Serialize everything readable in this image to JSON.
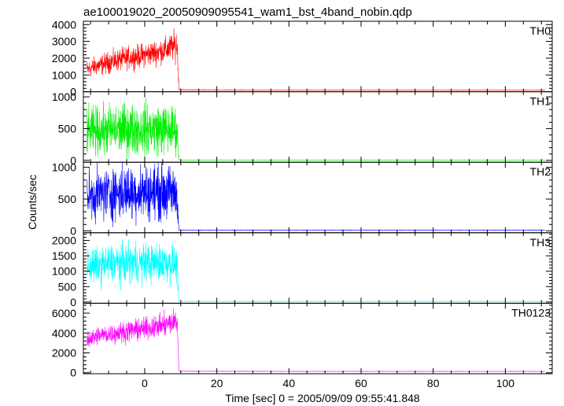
{
  "chart_data": {
    "type": "line",
    "title": "ae100019020_20050909095541_wam1_bst_4band_nobin.qdp",
    "xlabel": "Time [sec] 0 = 2005/09/09 09:55:41.848",
    "ylabel": "Counts/sec",
    "xlim": [
      -17,
      113
    ],
    "x_ticks": [
      0,
      20,
      40,
      60,
      80,
      100
    ],
    "grid": false,
    "panels": [
      {
        "name": "TH0",
        "color": "#ff0000",
        "ylim": [
          0,
          4200
        ],
        "y_ticks": [
          0,
          1000,
          2000,
          3000,
          4000
        ],
        "series": {
          "x": [
            -16,
            -14,
            -12,
            -10,
            -8,
            -6,
            -4,
            -2,
            0,
            2,
            4,
            6,
            8,
            9,
            9.5,
            10,
            20,
            40,
            60,
            80,
            100,
            111
          ],
          "y": [
            1300,
            1500,
            1600,
            1750,
            1850,
            1950,
            2050,
            2100,
            2200,
            2300,
            2400,
            2500,
            2700,
            2800,
            150,
            120,
            110,
            100,
            100,
            100,
            100,
            100
          ],
          "noise": [
            700,
            700,
            750,
            800,
            800,
            850,
            850,
            850,
            900,
            900,
            950,
            950,
            1100,
            1200,
            40,
            20,
            15,
            10,
            10,
            10,
            10,
            10
          ]
        }
      },
      {
        "name": "TH1",
        "color": "#00ee00",
        "ylim": [
          -30,
          1080
        ],
        "y_ticks": [
          0,
          500,
          1000
        ],
        "series": {
          "x": [
            -16,
            -12,
            -8,
            -4,
            0,
            4,
            8,
            9,
            9.5,
            10,
            40,
            80,
            111
          ],
          "y": [
            450,
            470,
            480,
            490,
            500,
            490,
            480,
            470,
            10,
            5,
            5,
            5,
            5
          ],
          "noise": [
            450,
            480,
            500,
            500,
            500,
            500,
            480,
            450,
            5,
            3,
            3,
            3,
            3
          ]
        }
      },
      {
        "name": "TH2",
        "color": "#0000ff",
        "ylim": [
          -30,
          1080
        ],
        "y_ticks": [
          0,
          500,
          1000
        ],
        "series": {
          "x": [
            -16,
            -12,
            -8,
            -4,
            0,
            4,
            8,
            9,
            9.5,
            10,
            40,
            80,
            111
          ],
          "y": [
            560,
            580,
            600,
            610,
            620,
            610,
            600,
            580,
            15,
            10,
            10,
            10,
            10
          ],
          "noise": [
            480,
            520,
            540,
            540,
            540,
            540,
            520,
            500,
            6,
            4,
            4,
            4,
            4
          ]
        }
      },
      {
        "name": "TH3",
        "color": "#00ffff",
        "ylim": [
          -40,
          2250
        ],
        "y_ticks": [
          0,
          500,
          1000,
          1500,
          2000
        ],
        "series": {
          "x": [
            -16,
            -12,
            -8,
            -4,
            0,
            4,
            8,
            9,
            9.5,
            10,
            40,
            80,
            111
          ],
          "y": [
            1150,
            1200,
            1250,
            1270,
            1280,
            1270,
            1250,
            1200,
            25,
            20,
            20,
            20,
            20
          ],
          "noise": [
            700,
            750,
            800,
            800,
            800,
            800,
            760,
            700,
            8,
            5,
            5,
            5,
            5
          ]
        }
      },
      {
        "name": "TH0123",
        "color": "#ff00ff",
        "ylim": [
          -100,
          7000
        ],
        "y_ticks": [
          0,
          2000,
          4000,
          6000
        ],
        "series": {
          "x": [
            -16,
            -14,
            -12,
            -10,
            -8,
            -6,
            -4,
            -2,
            0,
            2,
            4,
            6,
            8,
            9,
            9.5,
            10,
            40,
            80,
            111
          ],
          "y": [
            3400,
            3600,
            3800,
            3900,
            4000,
            4100,
            4250,
            4350,
            4450,
            4550,
            4700,
            4850,
            5100,
            5300,
            200,
            150,
            140,
            140,
            140
          ],
          "noise": [
            1100,
            1150,
            1200,
            1250,
            1250,
            1300,
            1300,
            1350,
            1350,
            1400,
            1400,
            1450,
            1600,
            1700,
            60,
            25,
            20,
            20,
            20
          ]
        }
      }
    ]
  }
}
